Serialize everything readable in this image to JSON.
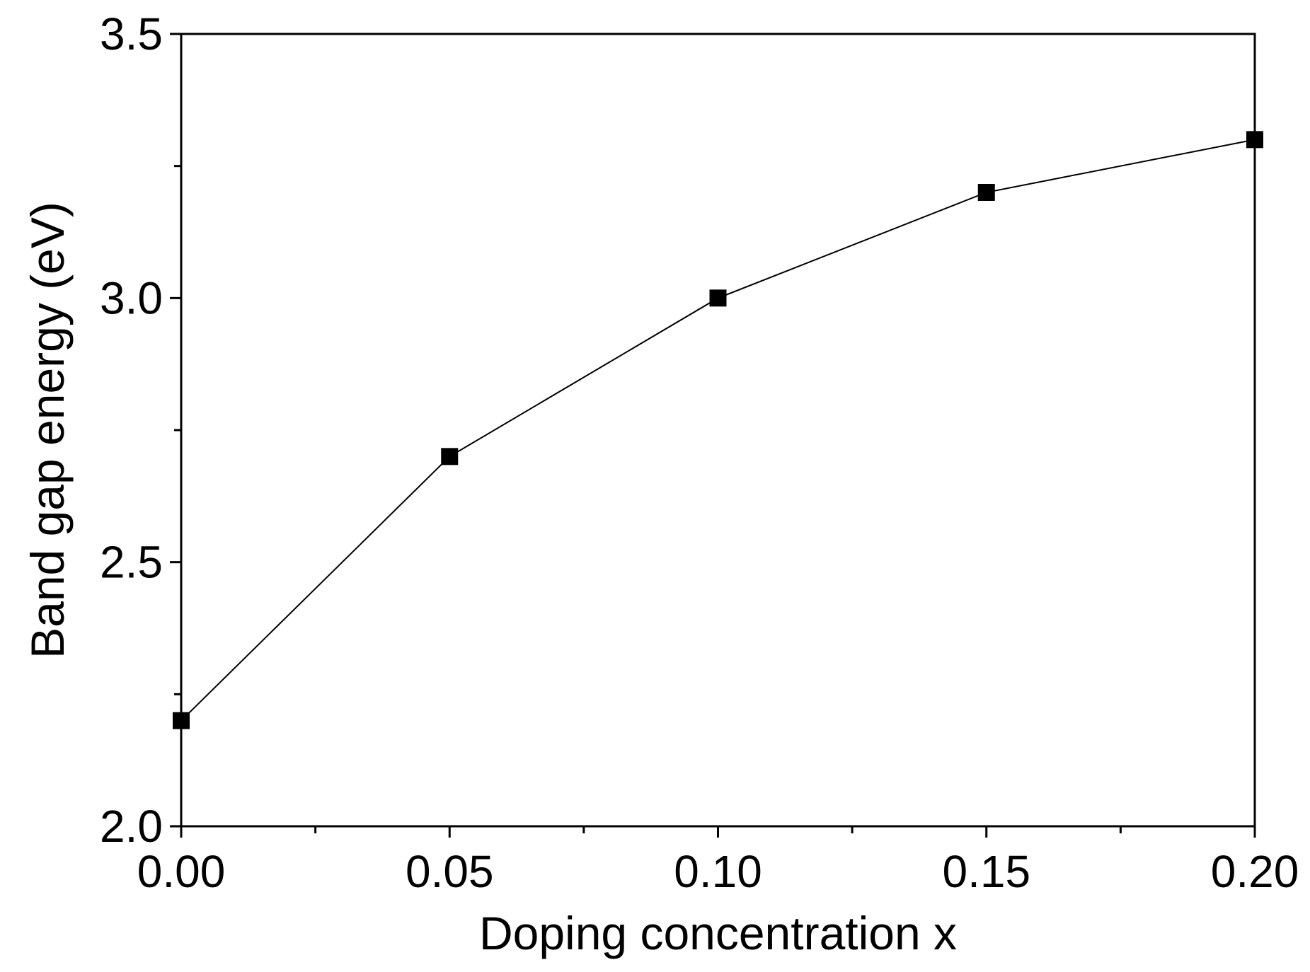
{
  "chart_data": {
    "type": "line",
    "title": "",
    "xlabel": "Doping concentration x",
    "ylabel": "Band gap energy (eV)",
    "xlim": [
      0.0,
      0.2
    ],
    "ylim": [
      2.0,
      3.5
    ],
    "x_ticks": [
      "0.00",
      "0.05",
      "0.10",
      "0.15",
      "0.20"
    ],
    "x_tick_values": [
      0.0,
      0.05,
      0.1,
      0.15,
      0.2
    ],
    "y_ticks": [
      "2.0",
      "2.5",
      "3.0",
      "3.5"
    ],
    "y_tick_values": [
      2.0,
      2.5,
      3.0,
      3.5
    ],
    "x_minor_ticks": [
      0.025,
      0.075,
      0.125,
      0.175
    ],
    "y_minor_ticks": [
      2.25,
      2.75,
      3.25
    ],
    "grid": false,
    "legend": "none",
    "marker": "square",
    "line_color": "#000000",
    "marker_color": "#000000",
    "series": [
      {
        "x": [
          0.0,
          0.05,
          0.1,
          0.15,
          0.2
        ],
        "values": [
          2.2,
          2.7,
          3.0,
          3.2,
          3.3
        ]
      }
    ]
  }
}
